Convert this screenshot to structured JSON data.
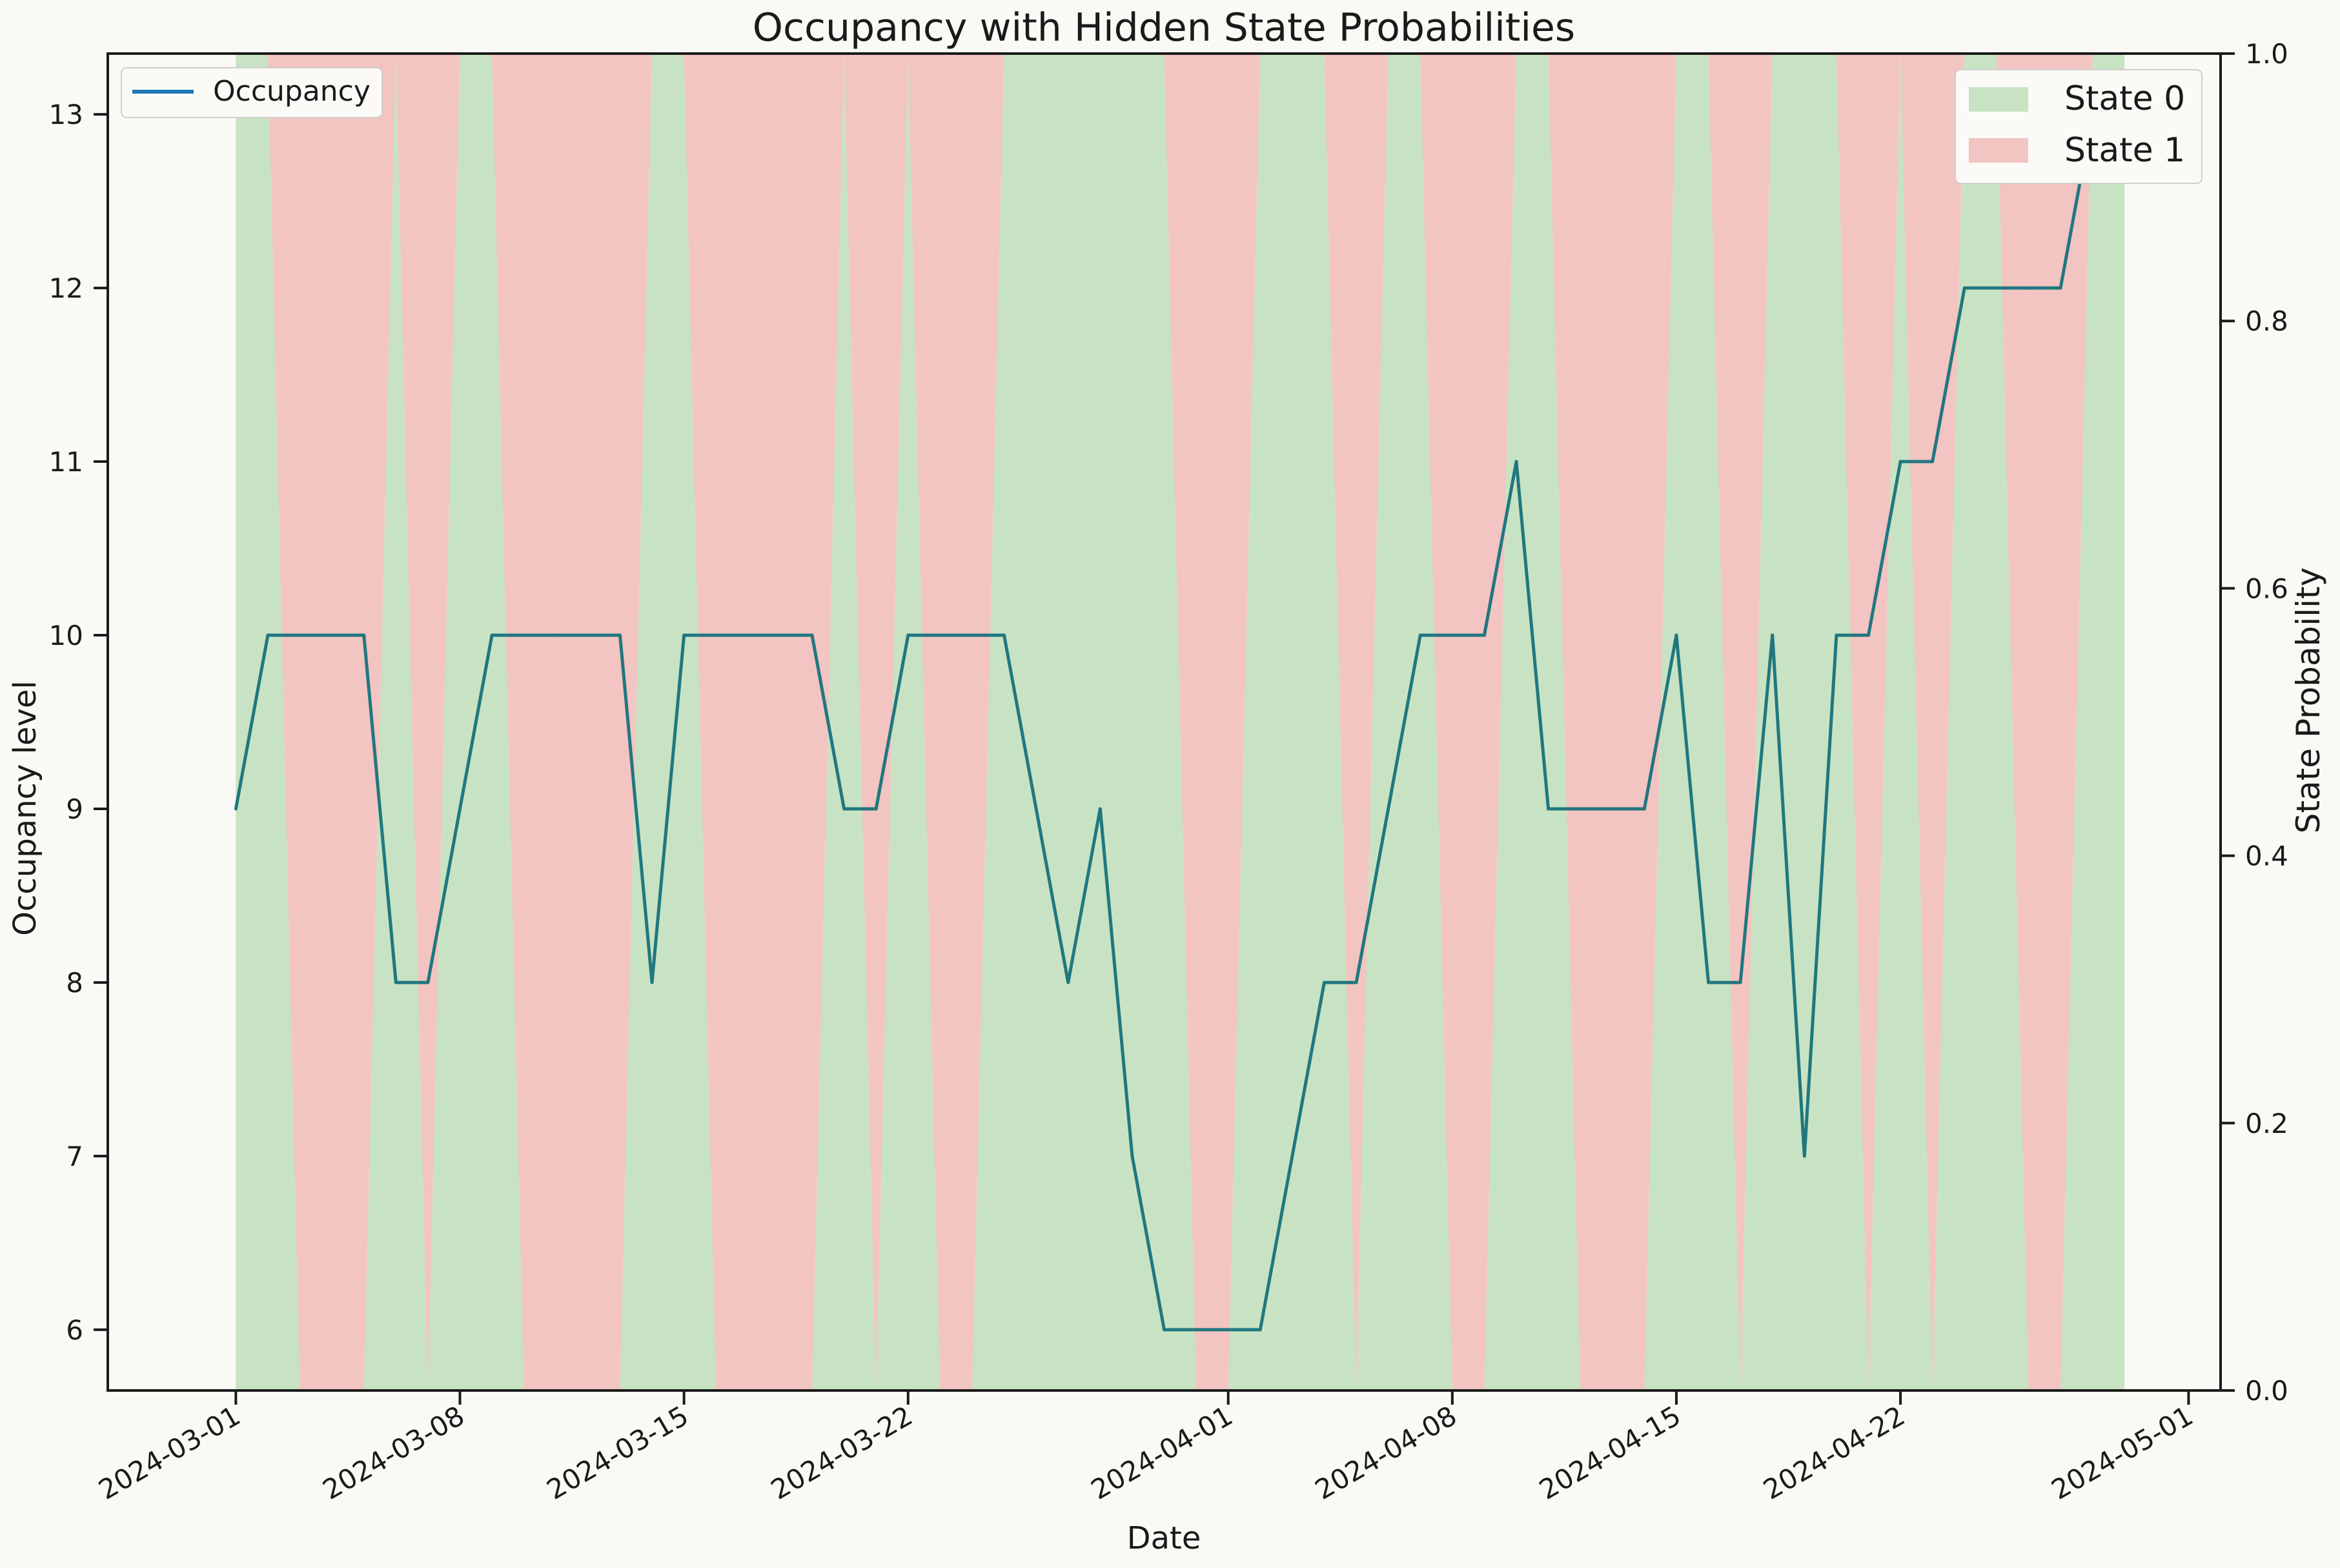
{
  "chart_data": {
    "type": "line",
    "title": "Occupancy with Hidden State Probabilities",
    "xlabel": "Date",
    "ylabel": "Occupancy level",
    "ylabel_right": "State Probability",
    "x_start": "2024-03-01",
    "xlim": [
      "2024-02-26",
      "2024-05-02"
    ],
    "x_ticks": [
      "2024-03-01",
      "2024-03-08",
      "2024-03-15",
      "2024-03-22",
      "2024-04-01",
      "2024-04-08",
      "2024-04-15",
      "2024-04-22",
      "2024-05-01"
    ],
    "ylim": [
      5.65,
      13.35
    ],
    "y_ticks": [
      6,
      7,
      8,
      9,
      10,
      11,
      12,
      13
    ],
    "ylim_right": [
      0,
      1
    ],
    "y_ticks_right": [
      "0.0",
      "0.2",
      "0.4",
      "0.6",
      "0.8",
      "1.0"
    ],
    "grid": false,
    "series": [
      {
        "name": "Occupancy",
        "color": "#1f77b4",
        "x": [
          "2024-03-01",
          "2024-03-02",
          "2024-03-03",
          "2024-03-04",
          "2024-03-05",
          "2024-03-06",
          "2024-03-07",
          "2024-03-08",
          "2024-03-09",
          "2024-03-10",
          "2024-03-11",
          "2024-03-12",
          "2024-03-13",
          "2024-03-14",
          "2024-03-15",
          "2024-03-16",
          "2024-03-17",
          "2024-03-18",
          "2024-03-19",
          "2024-03-20",
          "2024-03-21",
          "2024-03-22",
          "2024-03-23",
          "2024-03-24",
          "2024-03-25",
          "2024-03-26",
          "2024-03-27",
          "2024-03-28",
          "2024-03-29",
          "2024-03-30",
          "2024-03-31",
          "2024-04-01",
          "2024-04-02",
          "2024-04-03",
          "2024-04-04",
          "2024-04-05",
          "2024-04-06",
          "2024-04-07",
          "2024-04-08",
          "2024-04-09",
          "2024-04-10",
          "2024-04-11",
          "2024-04-12",
          "2024-04-13",
          "2024-04-14",
          "2024-04-15",
          "2024-04-16",
          "2024-04-17",
          "2024-04-18",
          "2024-04-19",
          "2024-04-20",
          "2024-04-21",
          "2024-04-22",
          "2024-04-23",
          "2024-04-24",
          "2024-04-25",
          "2024-04-26",
          "2024-04-27",
          "2024-04-28",
          "2024-04-29"
        ],
        "values": [
          9,
          10,
          10,
          10,
          10,
          8,
          8,
          9,
          10,
          10,
          10,
          10,
          10,
          8,
          10,
          10,
          10,
          10,
          10,
          9,
          9,
          10,
          10,
          10,
          10,
          9,
          8,
          9,
          7,
          6,
          6,
          6,
          6,
          7,
          8,
          8,
          9,
          10,
          10,
          10,
          11,
          9,
          9,
          9,
          9,
          10,
          8,
          8,
          10,
          7,
          10,
          10,
          11,
          11,
          12,
          12,
          12,
          12,
          13,
          13
        ]
      }
    ],
    "states": [
      {
        "name": "State 0",
        "color": "#c8e3c3",
        "probability": [
          1,
          1,
          0,
          0,
          0,
          1,
          0,
          1,
          1,
          0,
          0,
          0,
          0,
          1,
          1,
          0,
          0,
          0,
          0,
          1,
          0,
          1,
          0,
          0,
          1,
          1,
          1,
          1,
          1,
          1,
          0,
          0,
          1,
          1,
          1,
          0,
          1,
          1,
          0,
          0,
          1,
          1,
          0,
          0,
          0,
          1,
          1,
          0,
          1,
          1,
          1,
          0,
          1,
          0,
          1,
          1,
          0,
          0,
          1,
          1
        ]
      },
      {
        "name": "State 1",
        "color": "#f2c4c2"
      }
    ],
    "legend": "top-left (line), top-right (states)"
  }
}
